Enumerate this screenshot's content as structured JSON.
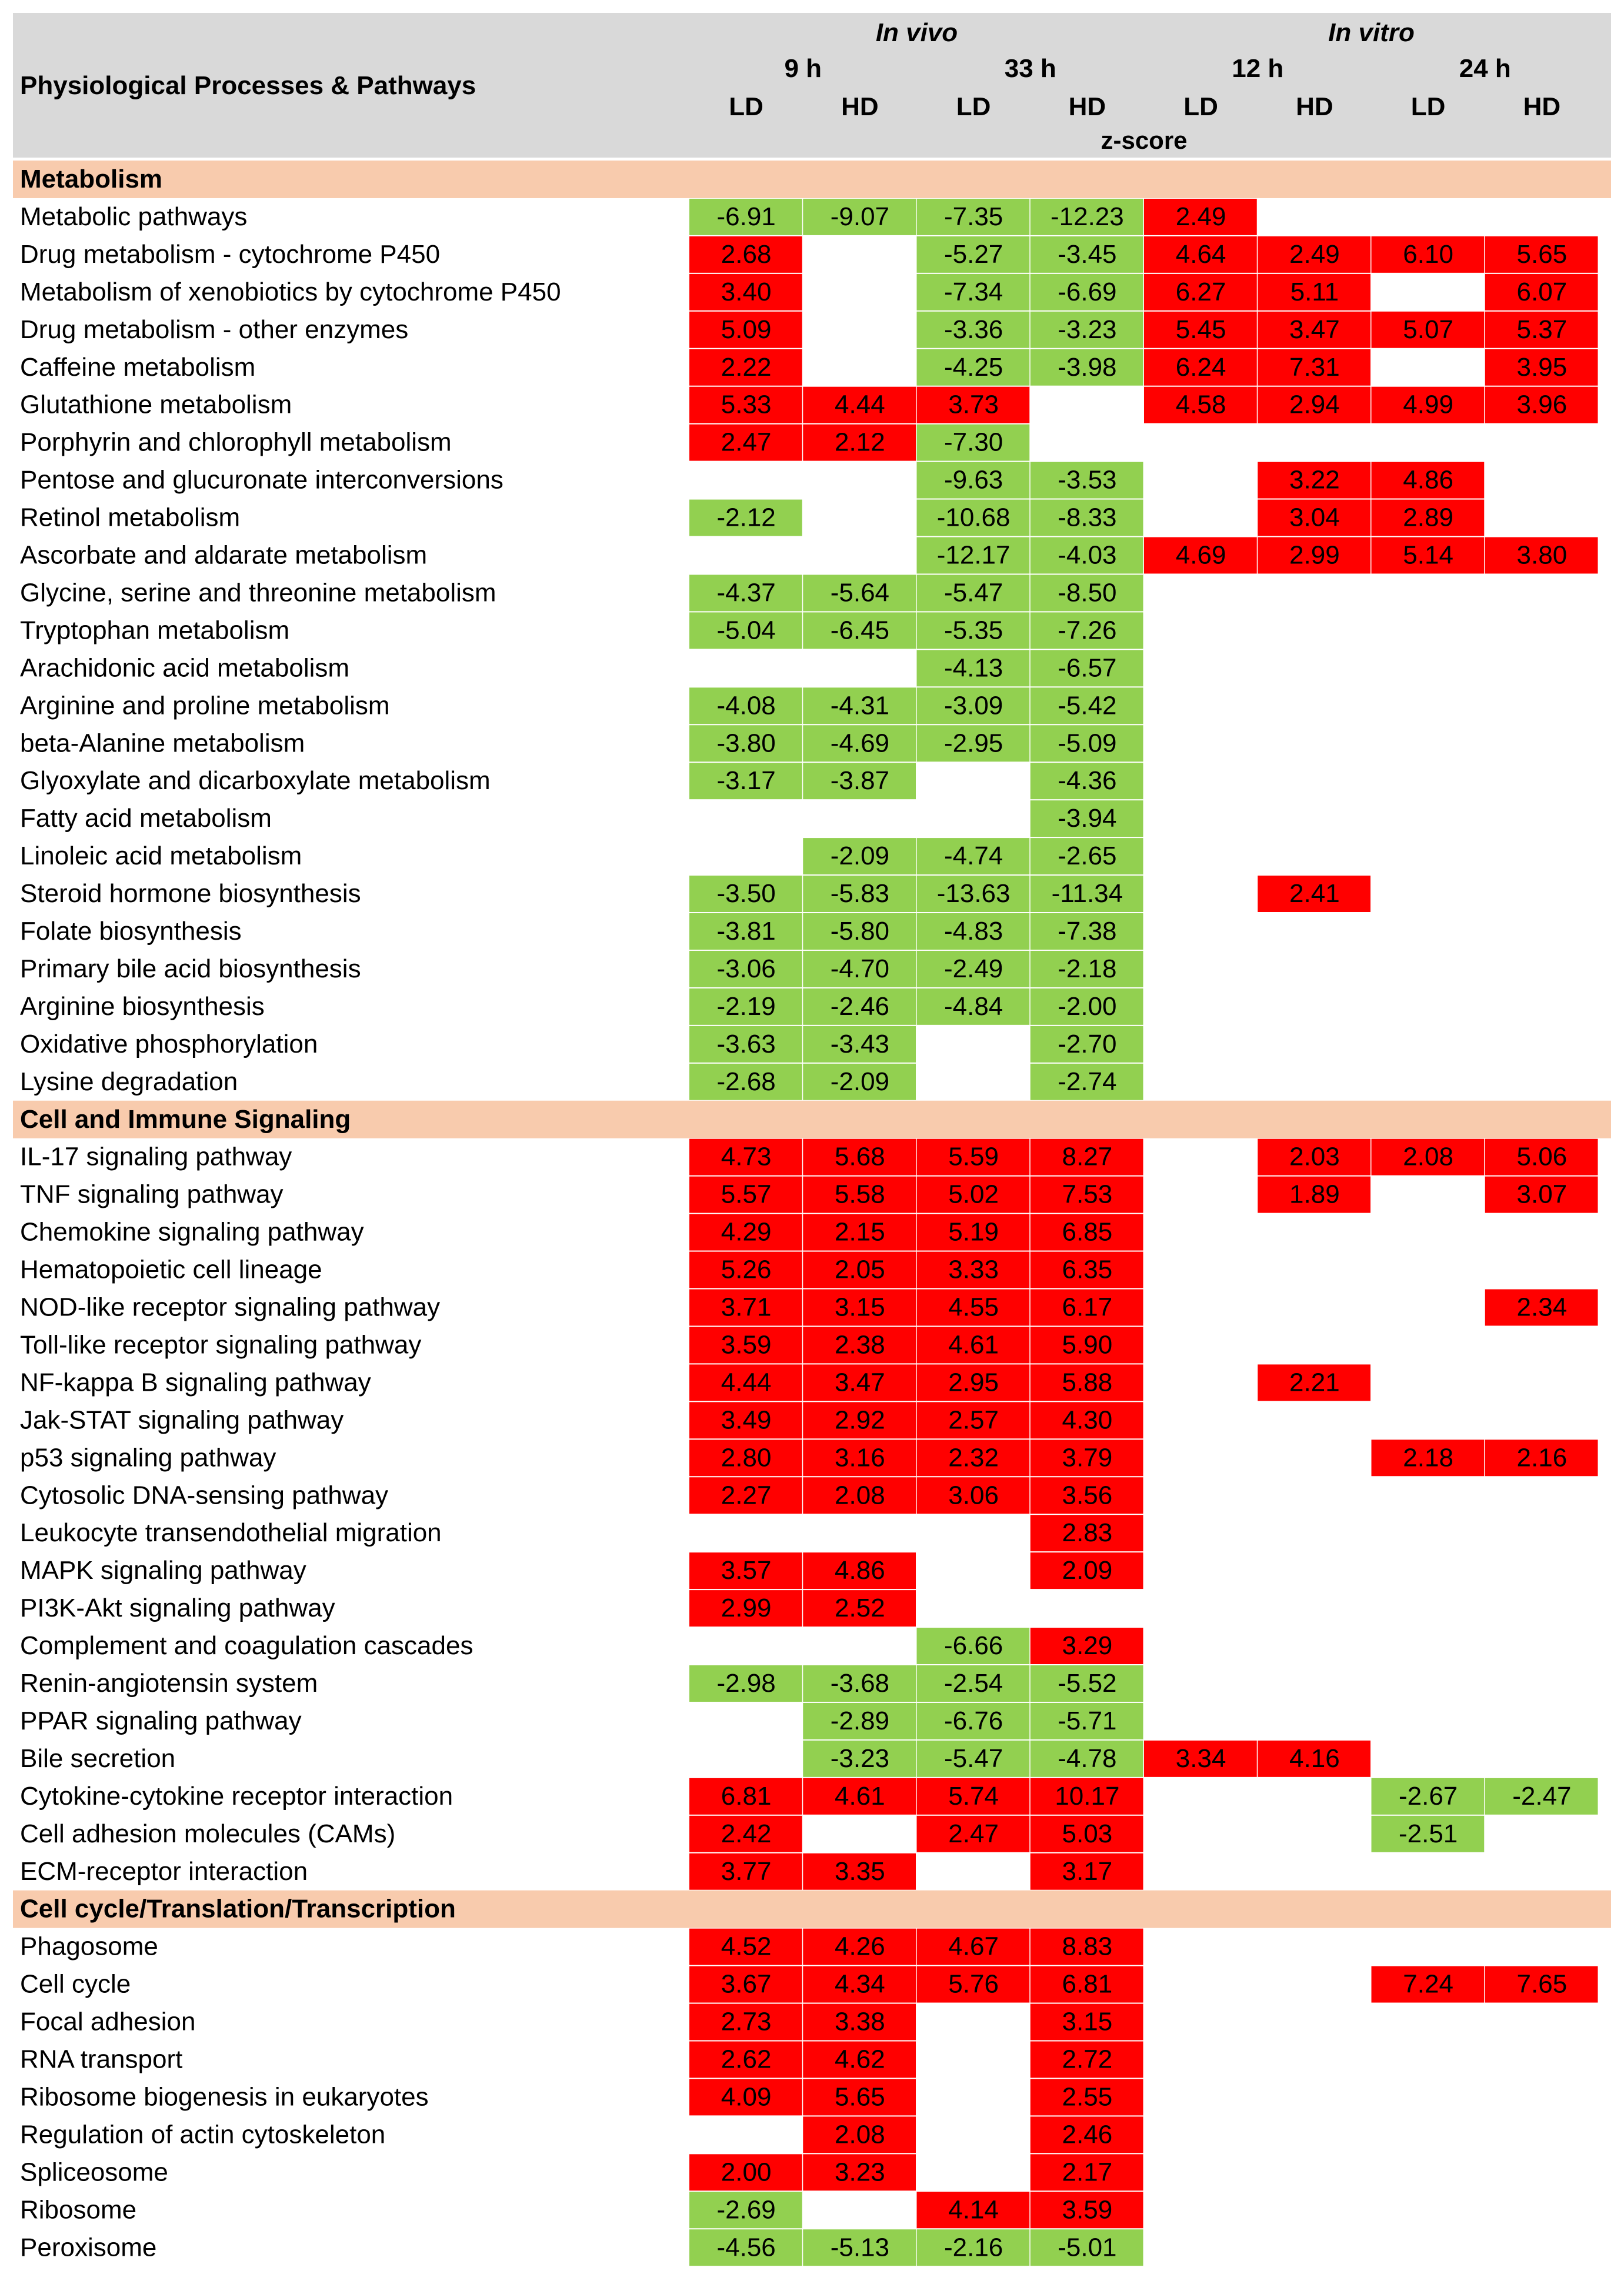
{
  "chart_data": {
    "type": "table",
    "title": "Physiological Processes & Pathways",
    "header": {
      "row_label": "Physiological Processes & Pathways",
      "groups": [
        "In vivo",
        "In vitro"
      ],
      "times": [
        "9 h",
        "33 h",
        "12 h",
        "24 h"
      ],
      "doses": [
        "LD",
        "HD",
        "LD",
        "HD",
        "LD",
        "HD",
        "LD",
        "HD"
      ],
      "metric": "z-score"
    },
    "color_scale": {
      "positive": "#ff0000",
      "negative": "#92d050",
      "section_bg": "#f8cbad",
      "header_bg": "#d9d9d9"
    },
    "sections": [
      {
        "name": "Metabolism",
        "rows": [
          {
            "label": "Metabolic pathways",
            "values": [
              "-6.91",
              "-9.07",
              "-7.35",
              "-12.23",
              "2.49",
              "",
              "",
              ""
            ]
          },
          {
            "label": "Drug metabolism - cytochrome P450",
            "values": [
              "2.68",
              "",
              "-5.27",
              "-3.45",
              "4.64",
              "2.49",
              "6.10",
              "5.65"
            ]
          },
          {
            "label": "Metabolism of xenobiotics by cytochrome P450",
            "values": [
              "3.40",
              "",
              "-7.34",
              "-6.69",
              "6.27",
              "5.11",
              "",
              "6.07"
            ]
          },
          {
            "label": "Drug metabolism - other enzymes",
            "values": [
              "5.09",
              "",
              "-3.36",
              "-3.23",
              "5.45",
              "3.47",
              "5.07",
              "5.37"
            ]
          },
          {
            "label": "Caffeine metabolism",
            "values": [
              "2.22",
              "",
              "-4.25",
              "-3.98",
              "6.24",
              "7.31",
              "",
              "3.95"
            ]
          },
          {
            "label": "Glutathione metabolism",
            "values": [
              "5.33",
              "4.44",
              "3.73",
              "",
              "4.58",
              "2.94",
              "4.99",
              "3.96"
            ]
          },
          {
            "label": "Porphyrin and chlorophyll metabolism",
            "values": [
              "2.47",
              "2.12",
              "-7.30",
              "",
              "",
              "",
              "",
              ""
            ]
          },
          {
            "label": "Pentose and glucuronate interconversions",
            "values": [
              "",
              "",
              "-9.63",
              "-3.53",
              "",
              "3.22",
              "4.86",
              ""
            ]
          },
          {
            "label": "Retinol metabolism",
            "values": [
              "-2.12",
              "",
              "-10.68",
              "-8.33",
              "",
              "3.04",
              "2.89",
              ""
            ]
          },
          {
            "label": "Ascorbate and aldarate metabolism",
            "values": [
              "",
              "",
              "-12.17",
              "-4.03",
              "4.69",
              "2.99",
              "5.14",
              "3.80"
            ]
          },
          {
            "label": "Glycine, serine and threonine metabolism",
            "values": [
              "-4.37",
              "-5.64",
              "-5.47",
              "-8.50",
              "",
              "",
              "",
              ""
            ]
          },
          {
            "label": "Tryptophan metabolism",
            "values": [
              "-5.04",
              "-6.45",
              "-5.35",
              "-7.26",
              "",
              "",
              "",
              ""
            ]
          },
          {
            "label": "Arachidonic acid metabolism",
            "values": [
              "",
              "",
              "-4.13",
              "-6.57",
              "",
              "",
              "",
              ""
            ]
          },
          {
            "label": "Arginine and proline metabolism",
            "values": [
              "-4.08",
              "-4.31",
              "-3.09",
              "-5.42",
              "",
              "",
              "",
              ""
            ]
          },
          {
            "label": "beta-Alanine metabolism",
            "values": [
              "-3.80",
              "-4.69",
              "-2.95",
              "-5.09",
              "",
              "",
              "",
              ""
            ]
          },
          {
            "label": "Glyoxylate and dicarboxylate metabolism",
            "values": [
              "-3.17",
              "-3.87",
              "",
              "-4.36",
              "",
              "",
              "",
              ""
            ]
          },
          {
            "label": "Fatty acid metabolism",
            "values": [
              "",
              "",
              "",
              "-3.94",
              "",
              "",
              "",
              ""
            ]
          },
          {
            "label": "Linoleic acid metabolism",
            "values": [
              "",
              "-2.09",
              "-4.74",
              "-2.65",
              "",
              "",
              "",
              ""
            ]
          },
          {
            "label": "Steroid hormone biosynthesis",
            "values": [
              "-3.50",
              "-5.83",
              "-13.63",
              "-11.34",
              "",
              "2.41",
              "",
              ""
            ]
          },
          {
            "label": "Folate biosynthesis",
            "values": [
              "-3.81",
              "-5.80",
              "-4.83",
              "-7.38",
              "",
              "",
              "",
              ""
            ]
          },
          {
            "label": "Primary bile acid biosynthesis",
            "values": [
              "-3.06",
              "-4.70",
              "-2.49",
              "-2.18",
              "",
              "",
              "",
              ""
            ]
          },
          {
            "label": "Arginine biosynthesis",
            "values": [
              "-2.19",
              "-2.46",
              "-4.84",
              "-2.00",
              "",
              "",
              "",
              ""
            ]
          },
          {
            "label": "Oxidative phosphorylation",
            "values": [
              "-3.63",
              "-3.43",
              "",
              "-2.70",
              "",
              "",
              "",
              ""
            ]
          },
          {
            "label": "Lysine degradation",
            "values": [
              "-2.68",
              "-2.09",
              "",
              "-2.74",
              "",
              "",
              "",
              ""
            ]
          }
        ]
      },
      {
        "name": "Cell and Immune Signaling",
        "rows": [
          {
            "label": "IL-17 signaling pathway",
            "values": [
              "4.73",
              "5.68",
              "5.59",
              "8.27",
              "",
              "2.03",
              "2.08",
              "5.06"
            ]
          },
          {
            "label": "TNF signaling pathway",
            "values": [
              "5.57",
              "5.58",
              "5.02",
              "7.53",
              "",
              "1.89",
              "",
              "3.07"
            ]
          },
          {
            "label": "Chemokine signaling pathway",
            "values": [
              "4.29",
              "2.15",
              "5.19",
              "6.85",
              "",
              "",
              "",
              ""
            ]
          },
          {
            "label": "Hematopoietic cell lineage",
            "values": [
              "5.26",
              "2.05",
              "3.33",
              "6.35",
              "",
              "",
              "",
              ""
            ]
          },
          {
            "label": "NOD-like receptor signaling pathway",
            "values": [
              "3.71",
              "3.15",
              "4.55",
              "6.17",
              "",
              "",
              "",
              "2.34"
            ]
          },
          {
            "label": "Toll-like receptor signaling pathway",
            "values": [
              "3.59",
              "2.38",
              "4.61",
              "5.90",
              "",
              "",
              "",
              ""
            ]
          },
          {
            "label": "NF-kappa B signaling pathway",
            "values": [
              "4.44",
              "3.47",
              "2.95",
              "5.88",
              "",
              "2.21",
              "",
              ""
            ]
          },
          {
            "label": "Jak-STAT signaling pathway",
            "values": [
              "3.49",
              "2.92",
              "2.57",
              "4.30",
              "",
              "",
              "",
              ""
            ]
          },
          {
            "label": "p53 signaling pathway",
            "values": [
              "2.80",
              "3.16",
              "2.32",
              "3.79",
              "",
              "",
              "2.18",
              "2.16"
            ]
          },
          {
            "label": "Cytosolic DNA-sensing pathway",
            "values": [
              "2.27",
              "2.08",
              "3.06",
              "3.56",
              "",
              "",
              "",
              ""
            ]
          },
          {
            "label": "Leukocyte transendothelial migration",
            "values": [
              "",
              "",
              "",
              "2.83",
              "",
              "",
              "",
              ""
            ]
          },
          {
            "label": "MAPK signaling pathway",
            "values": [
              "3.57",
              "4.86",
              "",
              "2.09",
              "",
              "",
              "",
              ""
            ]
          },
          {
            "label": "PI3K-Akt signaling pathway",
            "values": [
              "2.99",
              "2.52",
              "",
              "",
              "",
              "",
              "",
              ""
            ]
          },
          {
            "label": "Complement and coagulation cascades",
            "values": [
              "",
              "",
              "-6.66",
              "3.29",
              "",
              "",
              "",
              ""
            ]
          },
          {
            "label": "Renin-angiotensin system",
            "values": [
              "-2.98",
              "-3.68",
              "-2.54",
              "-5.52",
              "",
              "",
              "",
              ""
            ]
          },
          {
            "label": "PPAR signaling pathway",
            "values": [
              "",
              "-2.89",
              "-6.76",
              "-5.71",
              "",
              "",
              "",
              ""
            ]
          },
          {
            "label": "Bile secretion",
            "values": [
              "",
              "-3.23",
              "-5.47",
              "-4.78",
              "3.34",
              "4.16",
              "",
              ""
            ]
          },
          {
            "label": "Cytokine-cytokine receptor interaction",
            "values": [
              "6.81",
              "4.61",
              "5.74",
              "10.17",
              "",
              "",
              "-2.67",
              "-2.47"
            ]
          },
          {
            "label": "Cell adhesion molecules (CAMs)",
            "values": [
              "2.42",
              "",
              "2.47",
              "5.03",
              "",
              "",
              "-2.51",
              ""
            ]
          },
          {
            "label": "ECM-receptor interaction",
            "values": [
              "3.77",
              "3.35",
              "",
              "3.17",
              "",
              "",
              "",
              ""
            ]
          }
        ]
      },
      {
        "name": "Cell cycle/Translation/Transcription",
        "rows": [
          {
            "label": "Phagosome",
            "values": [
              "4.52",
              "4.26",
              "4.67",
              "8.83",
              "",
              "",
              "",
              ""
            ]
          },
          {
            "label": "Cell cycle",
            "values": [
              "3.67",
              "4.34",
              "5.76",
              "6.81",
              "",
              "",
              "7.24",
              "7.65"
            ]
          },
          {
            "label": "Focal adhesion",
            "values": [
              "2.73",
              "3.38",
              "",
              "3.15",
              "",
              "",
              "",
              ""
            ]
          },
          {
            "label": "RNA transport",
            "values": [
              "2.62",
              "4.62",
              "",
              "2.72",
              "",
              "",
              "",
              ""
            ]
          },
          {
            "label": "Ribosome biogenesis in eukaryotes",
            "values": [
              "4.09",
              "5.65",
              "",
              "2.55",
              "",
              "",
              "",
              ""
            ]
          },
          {
            "label": "Regulation of actin cytoskeleton",
            "values": [
              "",
              "2.08",
              "",
              "2.46",
              "",
              "",
              "",
              ""
            ]
          },
          {
            "label": "Spliceosome",
            "values": [
              "2.00",
              "3.23",
              "",
              "2.17",
              "",
              "",
              "",
              ""
            ]
          },
          {
            "label": "Ribosome",
            "values": [
              "-2.69",
              "",
              "4.14",
              "3.59",
              "",
              "",
              "",
              ""
            ]
          },
          {
            "label": "Peroxisome",
            "values": [
              "-4.56",
              "-5.13",
              "-2.16",
              "-5.01",
              "",
              "",
              "",
              ""
            ]
          }
        ]
      }
    ]
  }
}
